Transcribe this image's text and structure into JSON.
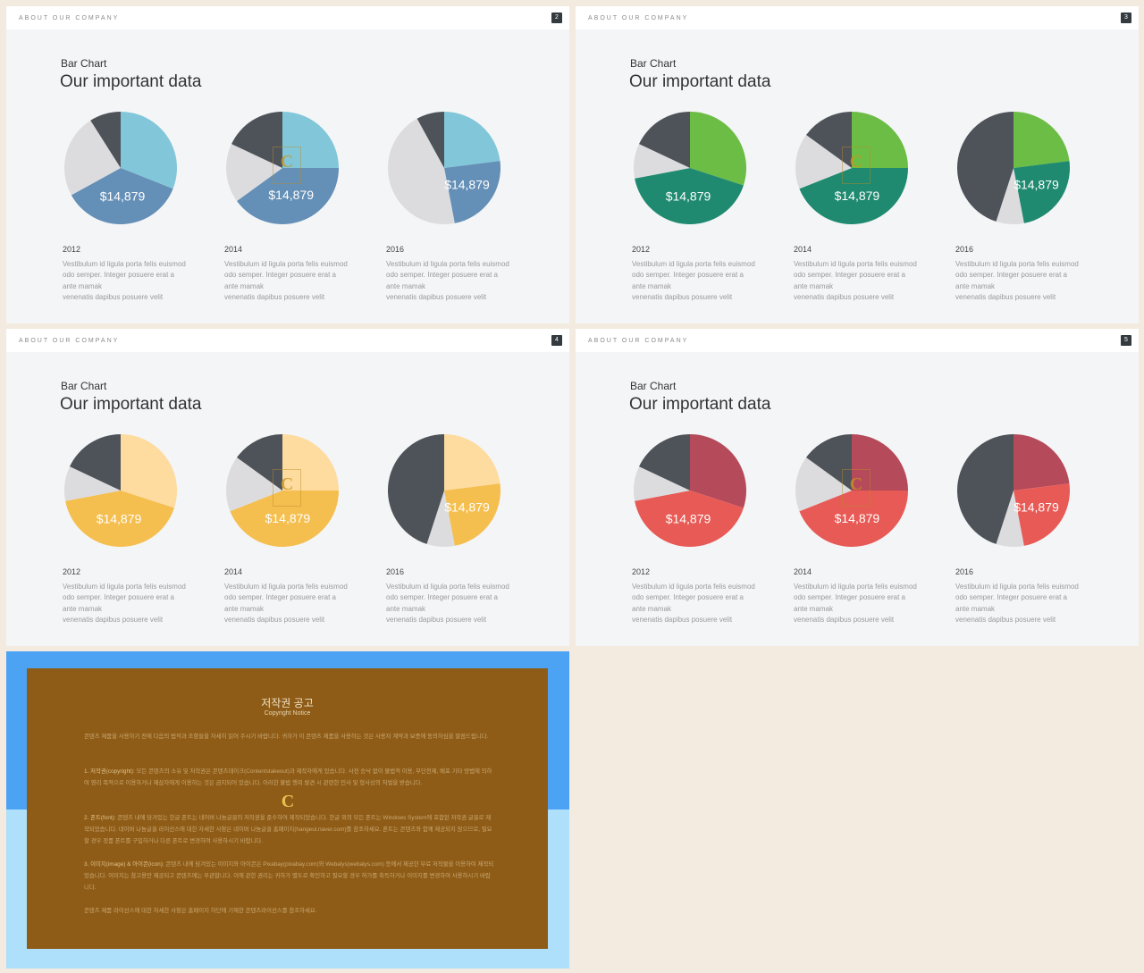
{
  "colors": {
    "page_bg": "#f3ebdf",
    "slide_bg": "#f4f5f7",
    "dark_slice": "#4e5359",
    "light_slice": "#dcdcde"
  },
  "slides": [
    {
      "company": "ABOUT OUR COMPANY",
      "number": "2",
      "subtitle": "Bar Chart",
      "title": "Our important data",
      "primary_color": "#82c7d9",
      "secondary_color": "#648fb6",
      "pies": [
        {
          "year": "2012",
          "value": "$14,879",
          "desc": "Vestibulum id ligula porta felis euismod\nodo semper. Integer posuere erat a\nante mamak\nvenenatis dapibus posuere velit",
          "slices": {
            "primary": 0.31,
            "secondary": 0.36,
            "light": 0.24,
            "dark": 0.09
          }
        },
        {
          "year": "2014",
          "value": "$14,879",
          "desc": "Vestibulum id ligula porta felis euismod\nodo semper. Integer posuere erat a\nante mamak\nvenenatis dapibus posuere velit",
          "slices": {
            "primary": 0.25,
            "secondary": 0.4,
            "light": 0.17,
            "dark": 0.18
          }
        },
        {
          "year": "2016",
          "value": "$14,879",
          "desc": "Vestibulum id ligula porta felis euismod\nodo semper. Integer posuere erat a\nante mamak\nvenenatis dapibus posuere velit",
          "slices": {
            "primary": 0.23,
            "secondary": 0.24,
            "light": 0.45,
            "dark": 0.08
          }
        }
      ]
    },
    {
      "company": "ABOUT OUR COMPANY",
      "number": "3",
      "subtitle": "Bar Chart",
      "title": "Our important data",
      "primary_color": "#6cbd45",
      "secondary_color": "#1f8a70",
      "pies": [
        {
          "year": "2012",
          "value": "$14,879",
          "desc": "Vestibulum id ligula porta felis euismod\nodo semper. Integer posuere erat a\nante mamak\nvenenatis dapibus posuere velit",
          "slices": {
            "primary": 0.3,
            "secondary": 0.42,
            "light": 0.1,
            "dark": 0.18
          }
        },
        {
          "year": "2014",
          "value": "$14,879",
          "desc": "Vestibulum id ligula porta felis euismod\nodo semper. Integer posuere erat a\nante mamak\nvenenatis dapibus posuere velit",
          "slices": {
            "primary": 0.25,
            "secondary": 0.44,
            "light": 0.16,
            "dark": 0.15
          }
        },
        {
          "year": "2016",
          "value": "$14,879",
          "desc": "Vestibulum id ligula porta felis euismod\nodo semper. Integer posuere erat a\nante mamak\nvenenatis dapibus posuere velit",
          "slices": {
            "primary": 0.23,
            "secondary": 0.24,
            "light": 0.08,
            "dark": 0.45
          }
        }
      ]
    },
    {
      "company": "ABOUT OUR COMPANY",
      "number": "4",
      "subtitle": "Bar Chart",
      "title": "Our important data",
      "primary_color": "#fedb9e",
      "secondary_color": "#f5bf4f",
      "pies": [
        {
          "year": "2012",
          "value": "$14,879",
          "desc": "Vestibulum id ligula porta felis euismod\nodo semper. Integer posuere erat a\nante mamak\nvenenatis dapibus posuere velit",
          "slices": {
            "primary": 0.3,
            "secondary": 0.42,
            "light": 0.1,
            "dark": 0.18
          }
        },
        {
          "year": "2014",
          "value": "$14,879",
          "desc": "Vestibulum id ligula porta felis euismod\nodo semper. Integer posuere erat a\nante mamak\nvenenatis dapibus posuere velit",
          "slices": {
            "primary": 0.25,
            "secondary": 0.44,
            "light": 0.16,
            "dark": 0.15
          }
        },
        {
          "year": "2016",
          "value": "$14,879",
          "desc": "Vestibulum id ligula porta felis euismod\nodo semper. Integer posuere erat a\nante mamak\nvenenatis dapibus posuere velit",
          "slices": {
            "primary": 0.23,
            "secondary": 0.24,
            "light": 0.08,
            "dark": 0.45
          }
        }
      ]
    },
    {
      "company": "ABOUT OUR COMPANY",
      "number": "5",
      "subtitle": "Bar Chart",
      "title": "Our important data",
      "primary_color": "#b54a5a",
      "secondary_color": "#e85a55",
      "pies": [
        {
          "year": "2012",
          "value": "$14,879",
          "desc": "Vestibulum id ligula porta felis euismod\nodo semper. Integer posuere erat a\nante mamak\nvenenatis dapibus posuere velit",
          "slices": {
            "primary": 0.3,
            "secondary": 0.42,
            "light": 0.1,
            "dark": 0.18
          }
        },
        {
          "year": "2014",
          "value": "$14,879",
          "desc": "Vestibulum id ligula porta felis euismod\nodo semper. Integer posuere erat a\nante mamak\nvenenatis dapibus posuere velit",
          "slices": {
            "primary": 0.25,
            "secondary": 0.44,
            "light": 0.16,
            "dark": 0.15
          }
        },
        {
          "year": "2016",
          "value": "$14,879",
          "desc": "Vestibulum id ligula porta felis euismod\nodo semper. Integer posuere erat a\nante mamak\nvenenatis dapibus posuere velit",
          "slices": {
            "primary": 0.23,
            "secondary": 0.24,
            "light": 0.08,
            "dark": 0.45
          }
        }
      ]
    }
  ],
  "watermark": {
    "letter": "C"
  },
  "notice": {
    "title": "저작권 공고",
    "subtitle": "Copyright Notice",
    "intro": "콘텐츠 제품을 사용하기 전에 다음의 법적과 조항들을 자세히 읽어 주시기 바랍니다. 귀하가 이 콘텐츠 제품을 사용하는 것은 사용자 계약과 보증에 동의하심을 말씀드립니다.",
    "section1_head": "1. 저작권(copyright):",
    "section1": "모든 콘텐츠의 소유 및 저작권은 콘텐츠데이크(Contentstakeout)과 제작자에게 있습니다. 사전 승낙 없이 불법적 이용, 무단전제, 배포 기타 방법에 의하여 영리 목적으로 이용하거나 제삼자에게 이용하는 것은 금지되어 있습니다. 이러한 불법 행위 발견 시 관련한 민사 및 형사상의 처벌을 받습니다.",
    "section2_head": "2. 폰트(font):",
    "section2": "콘텐츠 내에 담겨있는 한글 폰트는 네이버 나눔글꼴의 저작권을 준수하여 제작되었습니다. 한글 외의 모든 폰트는 Windows System에 포함된 저작권 글꼴로 제작되었습니다. 네이버 나눔글꼴 라이선스에 대한 자세한 사항은 네이버 나눔글꼴 홈페이지(hangeul.naver.com)를 참조하세요. 폰트는 콘텐츠와 함께 제공되지 않으므로, 필요할 경우 정품 폰트를 구입하거나 다른 폰트로 변경하여 사용하시기 바랍니다.",
    "section3_head": "3. 이미지(image) & 아이콘(icon):",
    "section3": "콘텐츠 내에 담겨있는 이미지와 아이콘은 Pixabay(pixabay.com)와 Webalys(webalys.com) 등에서 제공한 무료 저작물을 이용하여 제작되었습니다. 이미지는 참고용만 제공되고 콘텐츠에는 무관합니다. 이에 관한 권리는 귀하가 별도로 확인하고 필요할 경우 허가를 취득하거나 이미지를 변경하여 사용하시기 바랍니다.",
    "footer": "콘텐츠 제품 라이선스에 대한 자세한 사항은 홈페이지 하단에 기재한 콘텐츠라이선스를 참조하세요."
  }
}
